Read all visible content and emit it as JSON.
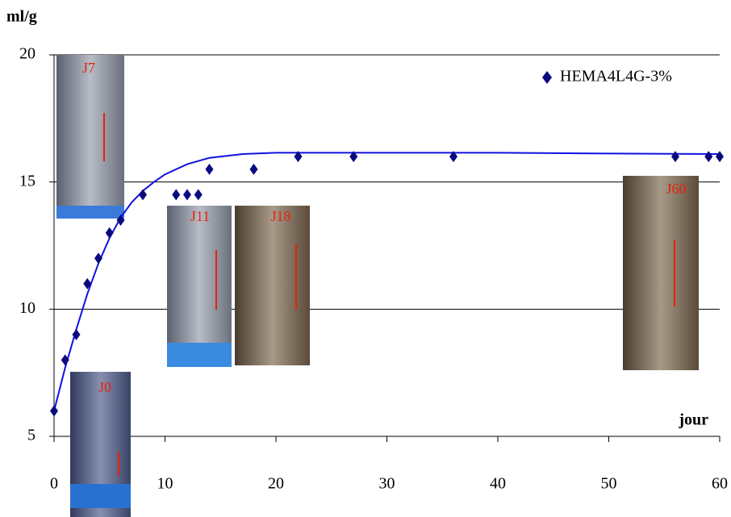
{
  "chart_data": {
    "type": "scatter",
    "y_label": "ml/g",
    "x_label": "jour",
    "x": [
      0,
      1,
      2,
      3,
      4,
      5,
      6,
      8,
      11,
      12,
      13,
      14,
      18,
      22,
      27,
      36,
      56,
      59,
      60
    ],
    "series": [
      {
        "name": "HEMA4L4G-3%",
        "color": "#0a0a80",
        "values": [
          6,
          8,
          9,
          11,
          12,
          13,
          13.5,
          14.5,
          14.5,
          14.5,
          14.5,
          15.5,
          15.5,
          16,
          16,
          16,
          16,
          16,
          16
        ]
      }
    ],
    "trendline": {
      "color": "#1010e0",
      "x": [
        0,
        1,
        2,
        3,
        4,
        5,
        6,
        7,
        8,
        9,
        10,
        12,
        14,
        17,
        20,
        30,
        40,
        50,
        60
      ],
      "values": [
        6,
        7.7,
        9.2,
        10.6,
        11.8,
        12.8,
        13.6,
        14.2,
        14.65,
        15,
        15.3,
        15.7,
        15.95,
        16.1,
        16.15,
        16.15,
        16.15,
        16.12,
        16.1
      ]
    },
    "xlim": [
      0,
      60
    ],
    "xticks": [
      0,
      10,
      20,
      30,
      40,
      50,
      60
    ],
    "ylim": [
      5,
      20
    ],
    "yticks": [
      5,
      10,
      15,
      20
    ],
    "grid": true,
    "legend": "top-right",
    "insets": [
      "J7",
      "J11",
      "J18",
      "J0",
      "J60"
    ]
  }
}
